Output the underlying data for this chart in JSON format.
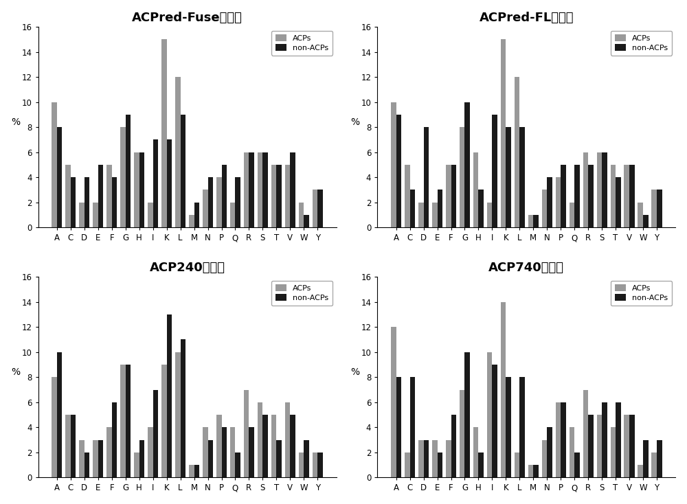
{
  "categories": [
    "A",
    "C",
    "D",
    "E",
    "F",
    "G",
    "H",
    "I",
    "K",
    "L",
    "M",
    "N",
    "P",
    "Q",
    "R",
    "S",
    "T",
    "V",
    "W",
    "Y"
  ],
  "subplots": [
    {
      "title": "ACPred-Fuse数据集",
      "acps": [
        10,
        5,
        2,
        2,
        5,
        8,
        6,
        2,
        15,
        12,
        1,
        3,
        4,
        2,
        6,
        6,
        5,
        5,
        2,
        3
      ],
      "nonacps": [
        8,
        4,
        4,
        5,
        4,
        9,
        6,
        7,
        7,
        9,
        2,
        4,
        5,
        4,
        6,
        6,
        5,
        6,
        1,
        3
      ]
    },
    {
      "title": "ACPred-FL数据集",
      "acps": [
        10,
        5,
        2,
        2,
        5,
        8,
        6,
        2,
        15,
        12,
        1,
        3,
        4,
        2,
        6,
        6,
        5,
        5,
        2,
        3
      ],
      "nonacps": [
        9,
        3,
        8,
        3,
        5,
        10,
        3,
        9,
        8,
        8,
        1,
        4,
        5,
        5,
        5,
        6,
        4,
        5,
        1,
        3
      ]
    },
    {
      "title": "ACP240数据集",
      "acps": [
        8,
        5,
        3,
        3,
        4,
        9,
        2,
        4,
        9,
        10,
        1,
        4,
        5,
        4,
        7,
        6,
        5,
        6,
        2,
        2
      ],
      "nonacps": [
        10,
        5,
        2,
        3,
        6,
        9,
        3,
        7,
        13,
        11,
        1,
        3,
        4,
        2,
        4,
        5,
        3,
        5,
        3,
        2
      ]
    },
    {
      "title": "ACP740数据集",
      "acps": [
        12,
        2,
        3,
        3,
        3,
        7,
        4,
        10,
        14,
        2,
        1,
        3,
        6,
        4,
        7,
        5,
        4,
        5,
        1,
        2
      ],
      "nonacps": [
        8,
        8,
        3,
        2,
        5,
        10,
        2,
        9,
        8,
        8,
        1,
        4,
        6,
        2,
        5,
        6,
        6,
        5,
        3,
        3
      ]
    }
  ],
  "acp_color": "#999999",
  "nonacp_color": "#1a1a1a",
  "ylabel": "%",
  "ylim": [
    0,
    16
  ],
  "yticks": [
    0,
    2,
    4,
    6,
    8,
    10,
    12,
    14,
    16
  ],
  "bar_width": 0.38,
  "legend_labels": [
    "ACPs",
    "non-ACPs"
  ],
  "background_color": "#ffffff",
  "title_fontsize": 13,
  "tick_fontsize": 8.5,
  "ylabel_fontsize": 10
}
